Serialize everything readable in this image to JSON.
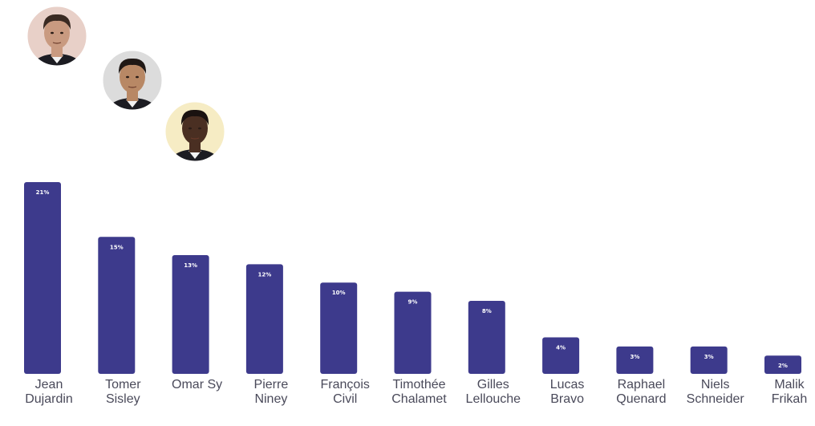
{
  "chart_data": {
    "type": "bar",
    "categories": [
      [
        "Jean",
        "Dujardin"
      ],
      [
        "Tomer",
        "Sisley"
      ],
      [
        "Omar Sy"
      ],
      [
        "Pierre",
        "Niney"
      ],
      [
        "François",
        "Civil"
      ],
      [
        "Timothée",
        "Chalamet"
      ],
      [
        "Gilles",
        "Lellouche"
      ],
      [
        "Lucas",
        "Bravo"
      ],
      [
        "Raphael",
        "Quenard"
      ],
      [
        "Niels",
        "Schneider"
      ],
      [
        "Malik",
        "Frikah"
      ]
    ],
    "values": [
      21,
      15,
      13,
      12,
      10,
      9,
      8,
      4,
      3,
      3,
      2
    ],
    "value_labels": [
      "21%",
      "15%",
      "13%",
      "12%",
      "10%",
      "9%",
      "8%",
      "4%",
      "3%",
      "3%",
      "2%"
    ],
    "unit": "%",
    "ylim": [
      0,
      21
    ],
    "grid": false,
    "legend": "none",
    "bar_color": "#3d3a8c",
    "avatars": [
      {
        "category_index": 0,
        "icon": "portrait-photo-icon",
        "skin": "#c99a80",
        "hair": "#3a2a22",
        "bg": "#e8d0c8"
      },
      {
        "category_index": 1,
        "icon": "portrait-photo-icon",
        "skin": "#b88865",
        "hair": "#1f1815",
        "bg": "#dcdcdc"
      },
      {
        "category_index": 2,
        "icon": "portrait-photo-icon",
        "skin": "#4a2f22",
        "hair": "#1a1210",
        "bg": "#f6ecc4"
      }
    ]
  }
}
